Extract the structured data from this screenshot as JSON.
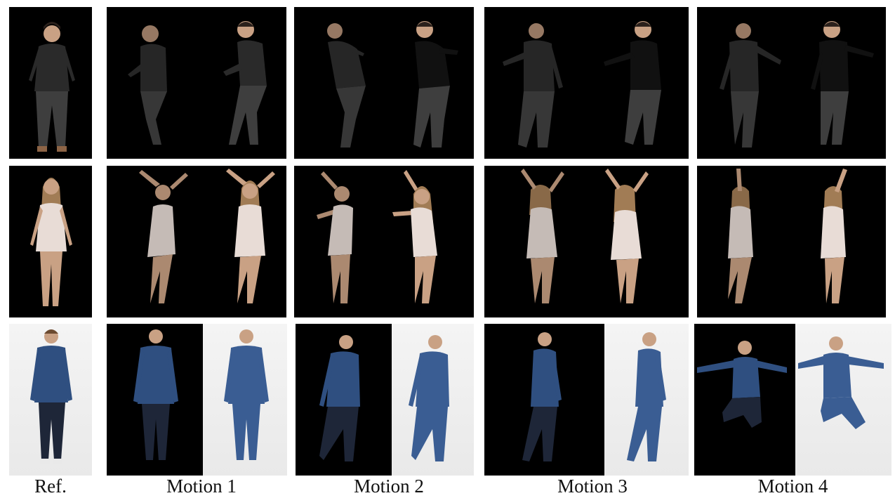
{
  "figure": {
    "columns": [
      "Ref.",
      "Motion 1",
      "Motion 2",
      "Motion 3",
      "Motion 4"
    ],
    "rows": [
      {
        "subject": "man in black long-sleeve shirt and gray jeans",
        "background": "black"
      },
      {
        "subject": "woman in light pink romper",
        "background": "black"
      },
      {
        "subject": "man in denim shirt and jeans",
        "background": "light-gray"
      }
    ]
  },
  "colors": {
    "black_shirt": "#2a2a2a",
    "gray_jeans": "#3e3e3e",
    "romper": "#e8dcd6",
    "skin": "#c9a184",
    "hair_dark": "#2b211c",
    "hair_light": "#a17c55",
    "denim_shirt": "#2f4f80",
    "denim_jeans": "#3a5d93",
    "dark_jeans": "#1e2638",
    "shoe_brown": "#8d6446",
    "shoe_white": "#e9e9e9"
  }
}
